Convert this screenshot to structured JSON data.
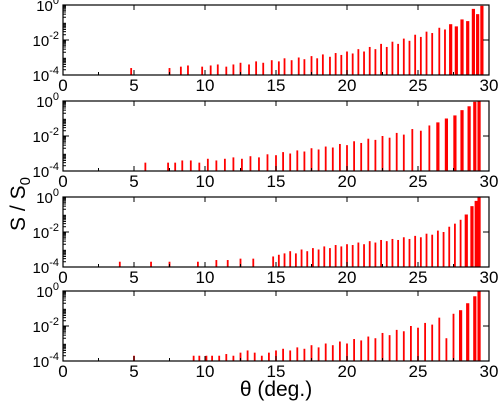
{
  "chart_data": {
    "type": "bar",
    "layout": "4 stacked panels sharing x axis",
    "xlabel": "θ (deg.)",
    "ylabel": "S / S",
    "ylabel_subscript": "0",
    "xlim": [
      0,
      30
    ],
    "xticks": [
      0,
      5,
      10,
      15,
      20,
      25,
      30
    ],
    "y_scale": "log",
    "ylim": [
      0.0001,
      1
    ],
    "yticks": [
      {
        "value": 1,
        "base": "10",
        "exp": "0"
      },
      {
        "value": 0.01,
        "base": "10",
        "exp": "-2"
      },
      {
        "value": 0.0001,
        "base": "10",
        "exp": "-4"
      }
    ],
    "bar_color": "#ff0000",
    "panels": [
      {
        "peaks": [
          {
            "x": 4.8,
            "y": 0.00025
          },
          {
            "x": 7.5,
            "y": 0.00025
          },
          {
            "x": 8.3,
            "y": 0.0003
          },
          {
            "x": 8.8,
            "y": 0.00035
          },
          {
            "x": 9.8,
            "y": 0.0003
          },
          {
            "x": 10.4,
            "y": 0.00035
          },
          {
            "x": 10.9,
            "y": 0.0004
          },
          {
            "x": 11.5,
            "y": 0.0003
          },
          {
            "x": 12.0,
            "y": 0.0004
          },
          {
            "x": 12.5,
            "y": 0.0005
          },
          {
            "x": 13.1,
            "y": 0.0004
          },
          {
            "x": 13.6,
            "y": 0.0006
          },
          {
            "x": 14.1,
            "y": 0.0005
          },
          {
            "x": 14.7,
            "y": 0.0007
          },
          {
            "x": 15.2,
            "y": 0.0006
          },
          {
            "x": 15.6,
            "y": 0.0009
          },
          {
            "x": 16.1,
            "y": 0.0007
          },
          {
            "x": 16.6,
            "y": 0.001
          },
          {
            "x": 17.0,
            "y": 0.0008
          },
          {
            "x": 17.5,
            "y": 0.0012
          },
          {
            "x": 17.9,
            "y": 0.0009
          },
          {
            "x": 18.3,
            "y": 0.0015
          },
          {
            "x": 18.8,
            "y": 0.0011
          },
          {
            "x": 19.2,
            "y": 0.0018
          },
          {
            "x": 19.6,
            "y": 0.0014
          },
          {
            "x": 20.0,
            "y": 0.0022
          },
          {
            "x": 20.4,
            "y": 0.0017
          },
          {
            "x": 20.8,
            "y": 0.003
          },
          {
            "x": 21.2,
            "y": 0.0022
          },
          {
            "x": 21.6,
            "y": 0.004
          },
          {
            "x": 22.0,
            "y": 0.003
          },
          {
            "x": 22.4,
            "y": 0.006
          },
          {
            "x": 22.8,
            "y": 0.004
          },
          {
            "x": 23.2,
            "y": 0.008
          },
          {
            "x": 23.6,
            "y": 0.006
          },
          {
            "x": 24.0,
            "y": 0.012
          },
          {
            "x": 24.4,
            "y": 0.009
          },
          {
            "x": 24.8,
            "y": 0.02
          },
          {
            "x": 25.2,
            "y": 0.015
          },
          {
            "x": 25.6,
            "y": 0.03
          },
          {
            "x": 26.0,
            "y": 0.025
          },
          {
            "x": 26.5,
            "y": 0.05
          },
          {
            "x": 26.9,
            "y": 0.04
          },
          {
            "x": 27.3,
            "y": 0.08
          },
          {
            "x": 27.7,
            "y": 0.06
          },
          {
            "x": 28.1,
            "y": 0.15
          },
          {
            "x": 28.5,
            "y": 0.12
          },
          {
            "x": 28.9,
            "y": 0.6
          },
          {
            "x": 29.2,
            "y": 0.3
          },
          {
            "x": 29.5,
            "y": 0.9
          }
        ]
      },
      {
        "peaks": [
          {
            "x": 5.8,
            "y": 0.0003
          },
          {
            "x": 7.4,
            "y": 0.0003
          },
          {
            "x": 7.9,
            "y": 0.0003
          },
          {
            "x": 8.4,
            "y": 0.0004
          },
          {
            "x": 9.0,
            "y": 0.0004
          },
          {
            "x": 9.6,
            "y": 0.0003
          },
          {
            "x": 10.2,
            "y": 0.0005
          },
          {
            "x": 10.8,
            "y": 0.0004
          },
          {
            "x": 11.4,
            "y": 0.0005
          },
          {
            "x": 12.0,
            "y": 0.0006
          },
          {
            "x": 12.6,
            "y": 0.0005
          },
          {
            "x": 13.2,
            "y": 0.0007
          },
          {
            "x": 13.8,
            "y": 0.0006
          },
          {
            "x": 14.4,
            "y": 0.0009
          },
          {
            "x": 15.0,
            "y": 0.0008
          },
          {
            "x": 15.5,
            "y": 0.0012
          },
          {
            "x": 16.0,
            "y": 0.001
          },
          {
            "x": 16.5,
            "y": 0.0015
          },
          {
            "x": 17.0,
            "y": 0.0013
          },
          {
            "x": 17.5,
            "y": 0.002
          },
          {
            "x": 18.0,
            "y": 0.0017
          },
          {
            "x": 18.5,
            "y": 0.0025
          },
          {
            "x": 19.0,
            "y": 0.0022
          },
          {
            "x": 19.5,
            "y": 0.0035
          },
          {
            "x": 20.0,
            "y": 0.003
          },
          {
            "x": 20.5,
            "y": 0.005
          },
          {
            "x": 21.0,
            "y": 0.004
          },
          {
            "x": 21.5,
            "y": 0.007
          },
          {
            "x": 22.0,
            "y": 0.006
          },
          {
            "x": 22.5,
            "y": 0.01
          },
          {
            "x": 23.0,
            "y": 0.008
          },
          {
            "x": 23.5,
            "y": 0.015
          },
          {
            "x": 24.0,
            "y": 0.012
          },
          {
            "x": 24.6,
            "y": 0.025
          },
          {
            "x": 25.2,
            "y": 0.02
          },
          {
            "x": 25.8,
            "y": 0.04
          },
          {
            "x": 26.4,
            "y": 0.06
          },
          {
            "x": 27.0,
            "y": 0.1
          },
          {
            "x": 27.6,
            "y": 0.15
          },
          {
            "x": 28.1,
            "y": 0.3
          },
          {
            "x": 28.6,
            "y": 0.5
          },
          {
            "x": 29.0,
            "y": 0.9
          },
          {
            "x": 29.3,
            "y": 1.0
          }
        ]
      },
      {
        "peaks": [
          {
            "x": 4.0,
            "y": 0.0002
          },
          {
            "x": 6.2,
            "y": 0.0002
          },
          {
            "x": 7.5,
            "y": 0.0002
          },
          {
            "x": 9.5,
            "y": 0.0002
          },
          {
            "x": 10.8,
            "y": 0.00025
          },
          {
            "x": 11.6,
            "y": 0.00025
          },
          {
            "x": 12.5,
            "y": 0.0003
          },
          {
            "x": 13.4,
            "y": 0.0003
          },
          {
            "x": 14.8,
            "y": 0.0004
          },
          {
            "x": 15.2,
            "y": 0.0005
          },
          {
            "x": 15.6,
            "y": 0.0006
          },
          {
            "x": 16.0,
            "y": 0.0008
          },
          {
            "x": 16.4,
            "y": 0.0006
          },
          {
            "x": 16.8,
            "y": 0.001
          },
          {
            "x": 17.2,
            "y": 0.0008
          },
          {
            "x": 17.6,
            "y": 0.0012
          },
          {
            "x": 18.0,
            "y": 0.001
          },
          {
            "x": 18.4,
            "y": 0.0015
          },
          {
            "x": 18.8,
            "y": 0.0012
          },
          {
            "x": 19.2,
            "y": 0.0018
          },
          {
            "x": 19.6,
            "y": 0.0015
          },
          {
            "x": 20.0,
            "y": 0.002
          },
          {
            "x": 20.4,
            "y": 0.0018
          },
          {
            "x": 20.8,
            "y": 0.0025
          },
          {
            "x": 21.2,
            "y": 0.002
          },
          {
            "x": 21.6,
            "y": 0.003
          },
          {
            "x": 22.0,
            "y": 0.0025
          },
          {
            "x": 22.4,
            "y": 0.0035
          },
          {
            "x": 22.8,
            "y": 0.003
          },
          {
            "x": 23.2,
            "y": 0.004
          },
          {
            "x": 23.6,
            "y": 0.0035
          },
          {
            "x": 24.0,
            "y": 0.005
          },
          {
            "x": 24.4,
            "y": 0.004
          },
          {
            "x": 24.8,
            "y": 0.006
          },
          {
            "x": 25.2,
            "y": 0.005
          },
          {
            "x": 25.6,
            "y": 0.008
          },
          {
            "x": 26.0,
            "y": 0.007
          },
          {
            "x": 26.4,
            "y": 0.012
          },
          {
            "x": 26.8,
            "y": 0.01
          },
          {
            "x": 27.2,
            "y": 0.02
          },
          {
            "x": 27.6,
            "y": 0.03
          },
          {
            "x": 28.0,
            "y": 0.05
          },
          {
            "x": 28.4,
            "y": 0.1
          },
          {
            "x": 28.8,
            "y": 0.3
          },
          {
            "x": 29.1,
            "y": 0.6
          },
          {
            "x": 29.3,
            "y": 1.0
          }
        ]
      },
      {
        "peaks": [
          {
            "x": 5.0,
            "y": 0.0002
          },
          {
            "x": 9.2,
            "y": 0.0002
          },
          {
            "x": 9.6,
            "y": 0.0002
          },
          {
            "x": 10.1,
            "y": 0.0002
          },
          {
            "x": 10.5,
            "y": 0.0002
          },
          {
            "x": 11.0,
            "y": 0.0002
          },
          {
            "x": 11.5,
            "y": 0.00025
          },
          {
            "x": 12.0,
            "y": 0.0002
          },
          {
            "x": 12.5,
            "y": 0.0003
          },
          {
            "x": 13.0,
            "y": 0.0004
          },
          {
            "x": 13.5,
            "y": 0.0003
          },
          {
            "x": 14.0,
            "y": 0.0002
          },
          {
            "x": 14.5,
            "y": 0.0003
          },
          {
            "x": 15.0,
            "y": 0.0004
          },
          {
            "x": 15.5,
            "y": 0.0005
          },
          {
            "x": 16.0,
            "y": 0.0004
          },
          {
            "x": 16.5,
            "y": 0.0006
          },
          {
            "x": 17.0,
            "y": 0.0005
          },
          {
            "x": 17.5,
            "y": 0.0008
          },
          {
            "x": 18.0,
            "y": 0.0006
          },
          {
            "x": 18.5,
            "y": 0.001
          },
          {
            "x": 19.0,
            "y": 0.0008
          },
          {
            "x": 19.5,
            "y": 0.0013
          },
          {
            "x": 20.0,
            "y": 0.001
          },
          {
            "x": 20.5,
            "y": 0.0018
          },
          {
            "x": 21.0,
            "y": 0.0015
          },
          {
            "x": 21.5,
            "y": 0.0025
          },
          {
            "x": 22.0,
            "y": 0.002
          },
          {
            "x": 22.5,
            "y": 0.004
          },
          {
            "x": 23.0,
            "y": 0.003
          },
          {
            "x": 23.5,
            "y": 0.006
          },
          {
            "x": 24.0,
            "y": 0.005
          },
          {
            "x": 24.5,
            "y": 0.01
          },
          {
            "x": 25.0,
            "y": 0.008
          },
          {
            "x": 25.5,
            "y": 0.015
          },
          {
            "x": 26.0,
            "y": 0.012
          },
          {
            "x": 26.5,
            "y": 0.03
          },
          {
            "x": 27.0,
            "y": 0.002
          },
          {
            "x": 27.5,
            "y": 0.05
          },
          {
            "x": 28.0,
            "y": 0.08
          },
          {
            "x": 28.5,
            "y": 0.2
          },
          {
            "x": 29.0,
            "y": 0.5
          },
          {
            "x": 29.3,
            "y": 1.0
          }
        ]
      }
    ]
  }
}
